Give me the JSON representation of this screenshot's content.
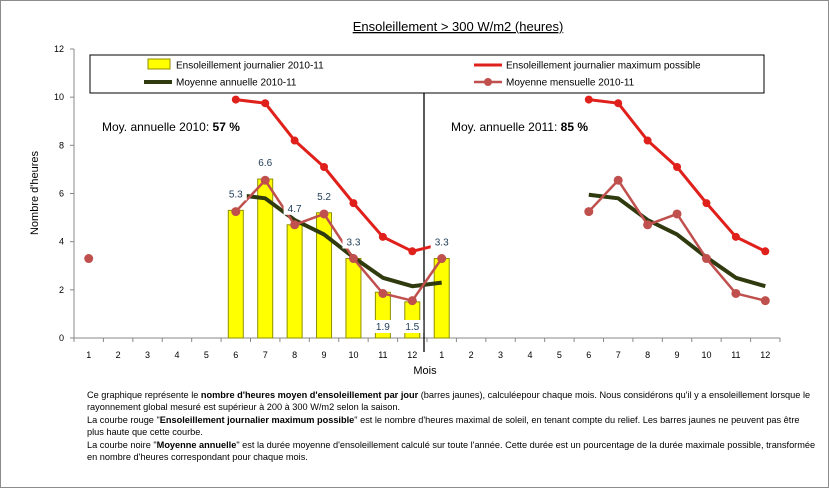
{
  "chart_data": {
    "type": "bar+line",
    "title": "Ensoleillement  > 300 W/m2 (heures)",
    "ylabel": "Nombre d'heures",
    "xlabel": "Mois",
    "ylim": [
      0,
      12
    ],
    "yticks": [
      "0",
      "2",
      "4",
      "6",
      "8",
      "10",
      "12"
    ],
    "categories": [
      "1",
      "2",
      "3",
      "4",
      "5",
      "6",
      "7",
      "8",
      "9",
      "10",
      "11",
      "12",
      "1",
      "2",
      "3",
      "4",
      "5",
      "6",
      "7",
      "8",
      "9",
      "10",
      "11",
      "12"
    ],
    "colors": {
      "bars": "#ffff00",
      "bar_border": "#8f8f00",
      "max": "#e0201b",
      "annual": "#2f3a0e",
      "monthly": "#c0504d"
    },
    "series": [
      {
        "name": "Ensoleillement journalier  2010-11",
        "kind": "bar",
        "values": [
          null,
          null,
          null,
          null,
          null,
          5.3,
          6.6,
          4.7,
          5.2,
          3.3,
          1.9,
          1.5,
          3.3,
          null,
          null,
          null,
          null,
          null,
          null,
          null,
          null,
          null,
          null,
          null
        ]
      },
      {
        "name": "Ensoleillement journalier maximum possible",
        "kind": "line",
        "values": [
          null,
          null,
          null,
          null,
          null,
          9.9,
          9.75,
          8.2,
          7.1,
          5.6,
          4.2,
          3.6,
          3.9,
          null,
          null,
          null,
          null,
          9.9,
          9.75,
          8.2,
          7.1,
          5.6,
          4.2,
          3.6
        ]
      },
      {
        "name": "Moyenne annuelle 2010-11",
        "kind": "line",
        "values": [
          null,
          null,
          null,
          null,
          null,
          5.95,
          5.8,
          4.9,
          4.3,
          3.35,
          2.5,
          2.15,
          2.3,
          null,
          null,
          null,
          null,
          5.95,
          5.8,
          4.9,
          4.3,
          3.35,
          2.5,
          2.15
        ]
      },
      {
        "name": "Moyenne mensuelle 2010-11",
        "kind": "line",
        "values": [
          3.3,
          null,
          null,
          null,
          null,
          5.25,
          6.55,
          4.7,
          5.15,
          3.3,
          1.85,
          1.55,
          3.3,
          null,
          null,
          null,
          null,
          5.25,
          6.55,
          4.7,
          5.15,
          3.3,
          1.85,
          1.55
        ]
      }
    ],
    "data_labels": [
      {
        "index": 5,
        "text": "5.3",
        "dy": -1
      },
      {
        "index": 6,
        "text": "6.6",
        "dy": -1
      },
      {
        "index": 7,
        "text": "4.7",
        "dy": -1
      },
      {
        "index": 8,
        "text": "5.2",
        "dy": -1
      },
      {
        "index": 9,
        "text": "3.3",
        "dy": -1
      },
      {
        "index": 10,
        "text": "1.9",
        "dy": 1
      },
      {
        "index": 11,
        "text": "1.5",
        "dy": 1
      },
      {
        "index": 12,
        "text": "3.3",
        "dy": -1
      }
    ],
    "annotations": [
      {
        "prefix": "Moy. annuelle 2010: ",
        "value": "57 %"
      },
      {
        "prefix": "Moy. annuelle 2011: ",
        "value": "85 %"
      }
    ],
    "grid": false,
    "legend": "top"
  },
  "note": [
    [
      "Ce graphique représente le ",
      {
        "b": "nombre d'heures moyen d'ensoleillement par jour"
      },
      " (barres jaunes), calculéepour chaque mois. Nous considérons qu'il y a ensoleillement lorsque le rayonnement global mesuré est supérieur à 200 à 300 W/m2 selon la saison."
    ],
    [
      "La courbe rouge \"",
      {
        "b": "Ensoleillement journalier  maximum possible"
      },
      "\" est le  nombre d'heures maximal de soleil, en tenant compte du relief. Les barres jaunes ne peuvent pas être plus haute que cette courbe."
    ],
    [
      "La courbe noire \"",
      {
        "b": "Moyenne annuelle"
      },
      "\"  est la durée moyenne d'ensoleillement calculé sur toute l'année. Cette durée est un pourcentage de la durée maximale possible, transformée en nombre d'heures correspondant pour chaque mois."
    ]
  ]
}
